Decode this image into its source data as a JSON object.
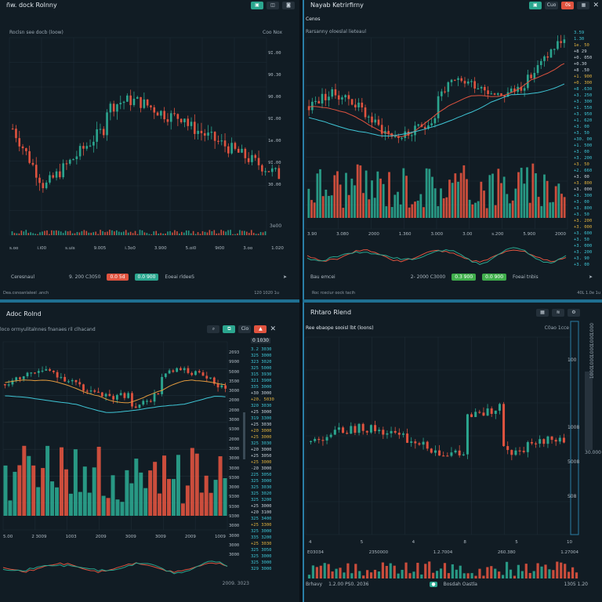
{
  "colors": {
    "up": "#2ba68f",
    "down": "#e0533f",
    "grid": "#1f2c36",
    "accent": "#2a7ea6",
    "yellow": "#e0b23f",
    "cyan": "#3fc6d6"
  },
  "panel_tl": {
    "title": "ñw. dock Rolnny",
    "subtitle": "Roclsn see docb (loow)",
    "topright": "Coo Nox",
    "y_ticks": [
      "9I.00",
      "90.30",
      "90.00",
      "9I.00",
      "1e.00",
      "9I.00",
      "30.00"
    ],
    "x_ticks": [
      "s.oo",
      "i.i00",
      "s.uis",
      "9.005",
      "i.3o0",
      "3.900",
      "5.oi0",
      "9i00",
      "3.oo",
      "1.020"
    ],
    "corner_tick": "3e00",
    "footer_label": "Ceresnaul",
    "footer_mid": "9. 200   C3050",
    "btn_red": "0.0 5d",
    "btn_teal": "0.0 900",
    "footer_text": "Eoeai rldeeS",
    "status_left": "Dea.csnoanlaleel .anch",
    "status_right": "120 1020  1u"
  },
  "panel_tr": {
    "title": "Nayab Ketrirfirny",
    "subtitle": "Rarsanny oloeslal lieteaul",
    "section_label": "Cenos",
    "tool_text": "Cuo",
    "btn_red": "0s",
    "x_ticks": [
      "3.90",
      "3.080",
      "2000",
      "1.360",
      "3.000",
      "3.00",
      "s.200",
      "5.900",
      "2000"
    ],
    "prices": [
      {
        "t": "3.59",
        "c": "cyan"
      },
      {
        "t": "1.30",
        "c": "cyan"
      },
      {
        "t": "1e. 50",
        "c": "yellow"
      },
      {
        "t": "+8 29",
        "c": "red"
      },
      {
        "t": "+0. 050",
        "c": "red"
      },
      {
        "t": "+0.30",
        "c": "red"
      },
      {
        "t": "+8 .50",
        "c": "red"
      },
      {
        "t": "+1. 900",
        "c": "yellow"
      },
      {
        "t": "+0. 300",
        "c": "yellow"
      },
      {
        "t": "+8 .630",
        "c": "cyan"
      },
      {
        "t": "+3. 250",
        "c": "cyan"
      },
      {
        "t": "+3. 300",
        "c": "cyan"
      },
      {
        "t": "+1. 550",
        "c": "cyan"
      },
      {
        "t": "+3. 950",
        "c": "cyan"
      },
      {
        "t": "+1. 620",
        "c": "cyan"
      },
      {
        "t": "+3. 00",
        "c": "cyan"
      },
      {
        "t": "+3. 50",
        "c": "cyan"
      },
      {
        "t": "+30. 00",
        "c": "cyan"
      },
      {
        "t": "+1. 500",
        "c": "cyan"
      },
      {
        "t": "+3. 00",
        "c": "cyan"
      },
      {
        "t": "+3. 200",
        "c": "cyan"
      },
      {
        "t": "+3. 50",
        "c": "yellow"
      },
      {
        "t": "+2. 660",
        "c": "cyan"
      },
      {
        "t": "+3. 00",
        "c": "red"
      },
      {
        "t": "+3. 800",
        "c": "yellow"
      },
      {
        "t": "+3. 000",
        "c": "red"
      },
      {
        "t": "+3. 300",
        "c": "cyan"
      },
      {
        "t": "+3. 00",
        "c": "cyan"
      },
      {
        "t": "+3. 800",
        "c": "cyan"
      },
      {
        "t": "+3. 50",
        "c": "cyan"
      },
      {
        "t": "+3. 200",
        "c": "yellow"
      },
      {
        "t": "+3. 000",
        "c": "yellow"
      },
      {
        "t": "+3. 600",
        "c": "cyan"
      },
      {
        "t": "+3. 50",
        "c": "cyan"
      },
      {
        "t": "+3. 000",
        "c": "cyan"
      },
      {
        "t": "+3. 200",
        "c": "cyan"
      },
      {
        "t": "+3. 90",
        "c": "cyan"
      },
      {
        "t": "+3. 00",
        "c": "cyan"
      },
      {
        "t": "+3. 00",
        "c": "cyan"
      },
      {
        "t": "+3. 00",
        "c": "cyan"
      }
    ],
    "footer_label": "Bau emcei",
    "footer_mid": "2- 2000   C3000",
    "btn_green1": "0.3 900",
    "btn_green2": "0.0 900",
    "footer_text": "Foeai tnbis",
    "status_left": "Roc rceciur oock tacih",
    "status_right": "40L 1.0e  1u"
  },
  "panel_bl": {
    "title": "Adoc Rolnd",
    "subtitle": "loco orrnyulitalnnes fnanaes ril clhacand",
    "tool_text": "Cio",
    "price_header": "0 1030",
    "prices": [
      {
        "t": "3.2 3030",
        "c": "cyan"
      },
      {
        "t": "325 3000",
        "c": "cyan"
      },
      {
        "t": "323 3020",
        "c": "cyan"
      },
      {
        "t": "325 5000",
        "c": "cyan"
      },
      {
        "t": "315 3930",
        "c": "cyan"
      },
      {
        "t": "321 3900",
        "c": "cyan"
      },
      {
        "t": "335 3000",
        "c": "cyan"
      },
      {
        "t": "+30 3000",
        "c": "red"
      },
      {
        "t": "+20. 5030",
        "c": "yellow"
      },
      {
        "t": "320 3030",
        "c": "cyan"
      },
      {
        "t": "+25 3000",
        "c": "red"
      },
      {
        "t": "319 3300",
        "c": "cyan"
      },
      {
        "t": "+25 3030",
        "c": "red"
      },
      {
        "t": "+20 3000",
        "c": "yellow"
      },
      {
        "t": "+25 3000",
        "c": "yellow"
      },
      {
        "t": "325 3030",
        "c": "cyan"
      },
      {
        "t": "+20 3000",
        "c": "red"
      },
      {
        "t": "+25 3050",
        "c": "red"
      },
      {
        "t": "+25 3000",
        "c": "yellow"
      },
      {
        "t": "-20 3000",
        "c": "red"
      },
      {
        "t": "225 3050",
        "c": "cyan"
      },
      {
        "t": "325 3000",
        "c": "cyan"
      },
      {
        "t": "325 3030",
        "c": "cyan"
      },
      {
        "t": "325 3020",
        "c": "cyan"
      },
      {
        "t": "325 3200",
        "c": "cyan"
      },
      {
        "t": "+25 3000",
        "c": "red"
      },
      {
        "t": "+20 3100",
        "c": "red"
      },
      {
        "t": "325 3400",
        "c": "cyan"
      },
      {
        "t": "+25 3300",
        "c": "yellow"
      },
      {
        "t": "325 3000",
        "c": "cyan"
      },
      {
        "t": "335 3200",
        "c": "cyan"
      },
      {
        "t": "+25 3030",
        "c": "yellow"
      },
      {
        "t": "325 3050",
        "c": "cyan"
      },
      {
        "t": "325 3000",
        "c": "cyan"
      },
      {
        "t": "325 3000",
        "c": "cyan"
      },
      {
        "t": "329 3000",
        "c": "cyan"
      }
    ],
    "mid_col": [
      "2093",
      "9900",
      "5000",
      "3500",
      "3000",
      "2000",
      "2000",
      "3000",
      "9300",
      "2000",
      "3000",
      "3000",
      "3000",
      "9300",
      "3000",
      "9300",
      "9300",
      "9300",
      "3000",
      "3000",
      "3000",
      "3000"
    ],
    "x_ticks": [
      "5.00",
      "2 3009",
      "1003",
      "2009",
      "3009",
      "3009",
      "2009",
      "1009"
    ],
    "status_right": "2009.  3023"
  },
  "panel_br": {
    "title": "Rhtaro Rlend",
    "subtitle": "Ree ebaope sooisl lbt (loons)",
    "topright": "C0ao 1cce",
    "y_ticks": [
      "100",
      "1008",
      "5008",
      "S08"
    ],
    "side_ticks": [
      "1000",
      "1000",
      "1000",
      "1000",
      "1000"
    ],
    "side_bottom": "30.000",
    "x_ticks": [
      "4",
      "5",
      "4",
      "8",
      "5",
      "10"
    ],
    "x_labels": [
      "E03034",
      "2350000",
      "1.2.7004",
      "260.380",
      "1.27004"
    ],
    "footer_left": "Brhavy",
    "footer_left2": "1.2.00  PS0.  2036",
    "footer_mid": "Bosdah Oastla",
    "footer_right": "1305  1.20"
  },
  "chart_data": [
    {
      "type": "candlestick",
      "panel": "tl",
      "title": "ñw. dock Rolnny"
    },
    {
      "type": "candlestick",
      "panel": "tr",
      "title": "Nayab Ketrirfirny"
    },
    {
      "type": "candlestick",
      "panel": "bl",
      "title": "Adoc Rolnd"
    },
    {
      "type": "candlestick",
      "panel": "br",
      "title": "Rhtaro Rlend"
    }
  ]
}
